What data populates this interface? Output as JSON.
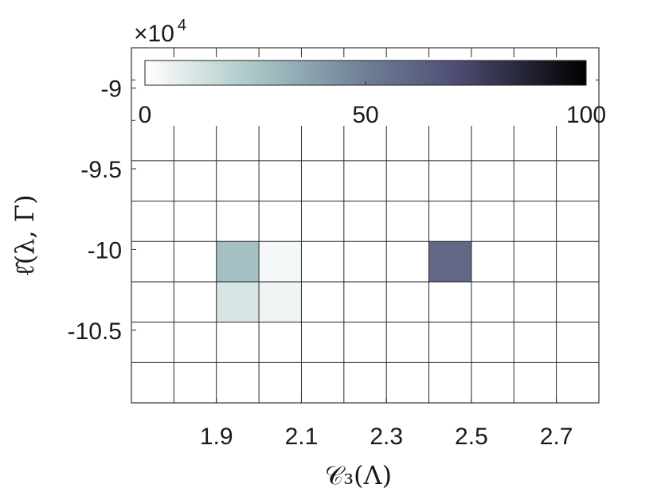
{
  "chart_data": {
    "type": "heatmap",
    "title": "",
    "xlabel": "𝒞₃(Λ)",
    "ylabel": "ℓ̂(λ, Γ)",
    "y_multiplier": "×10",
    "y_multiplier_exp": "4",
    "x_range": [
      1.7,
      2.8
    ],
    "y_range": [
      -10.95,
      -8.75
    ],
    "x_bin_width": 0.1,
    "y_bin_width": 0.25,
    "x_ticks": [
      1.9,
      2.1,
      2.3,
      2.5,
      2.7
    ],
    "x_tick_labels": [
      "1.9",
      "2.1",
      "2.3",
      "2.5",
      "2.7"
    ],
    "y_ticks": [
      -9,
      -9.5,
      -10,
      -10.5
    ],
    "y_tick_labels": [
      "-9",
      "-9.5",
      "-10",
      "-10.5"
    ],
    "grid": true,
    "colorbar": {
      "placement": "top (inside axes)",
      "range": [
        0,
        100
      ],
      "ticks": [
        0,
        50,
        100
      ],
      "tick_labels": [
        "0",
        "50",
        "100"
      ],
      "colormap": [
        "#ffffff",
        "#a8c6c6",
        "#4f4f75",
        "#000000"
      ]
    },
    "cells": [
      {
        "x": [
          1.9,
          2.0
        ],
        "y": [
          -10.2,
          -9.95
        ],
        "value": 35
      },
      {
        "x": [
          2.0,
          2.1
        ],
        "y": [
          -10.2,
          -9.95
        ],
        "value": 4
      },
      {
        "x": [
          1.9,
          2.0
        ],
        "y": [
          -10.45,
          -10.2
        ],
        "value": 15
      },
      {
        "x": [
          2.0,
          2.1
        ],
        "y": [
          -10.45,
          -10.2
        ],
        "value": 6
      },
      {
        "x": [
          2.4,
          2.5
        ],
        "y": [
          -10.2,
          -9.95
        ],
        "value": 60
      }
    ]
  }
}
